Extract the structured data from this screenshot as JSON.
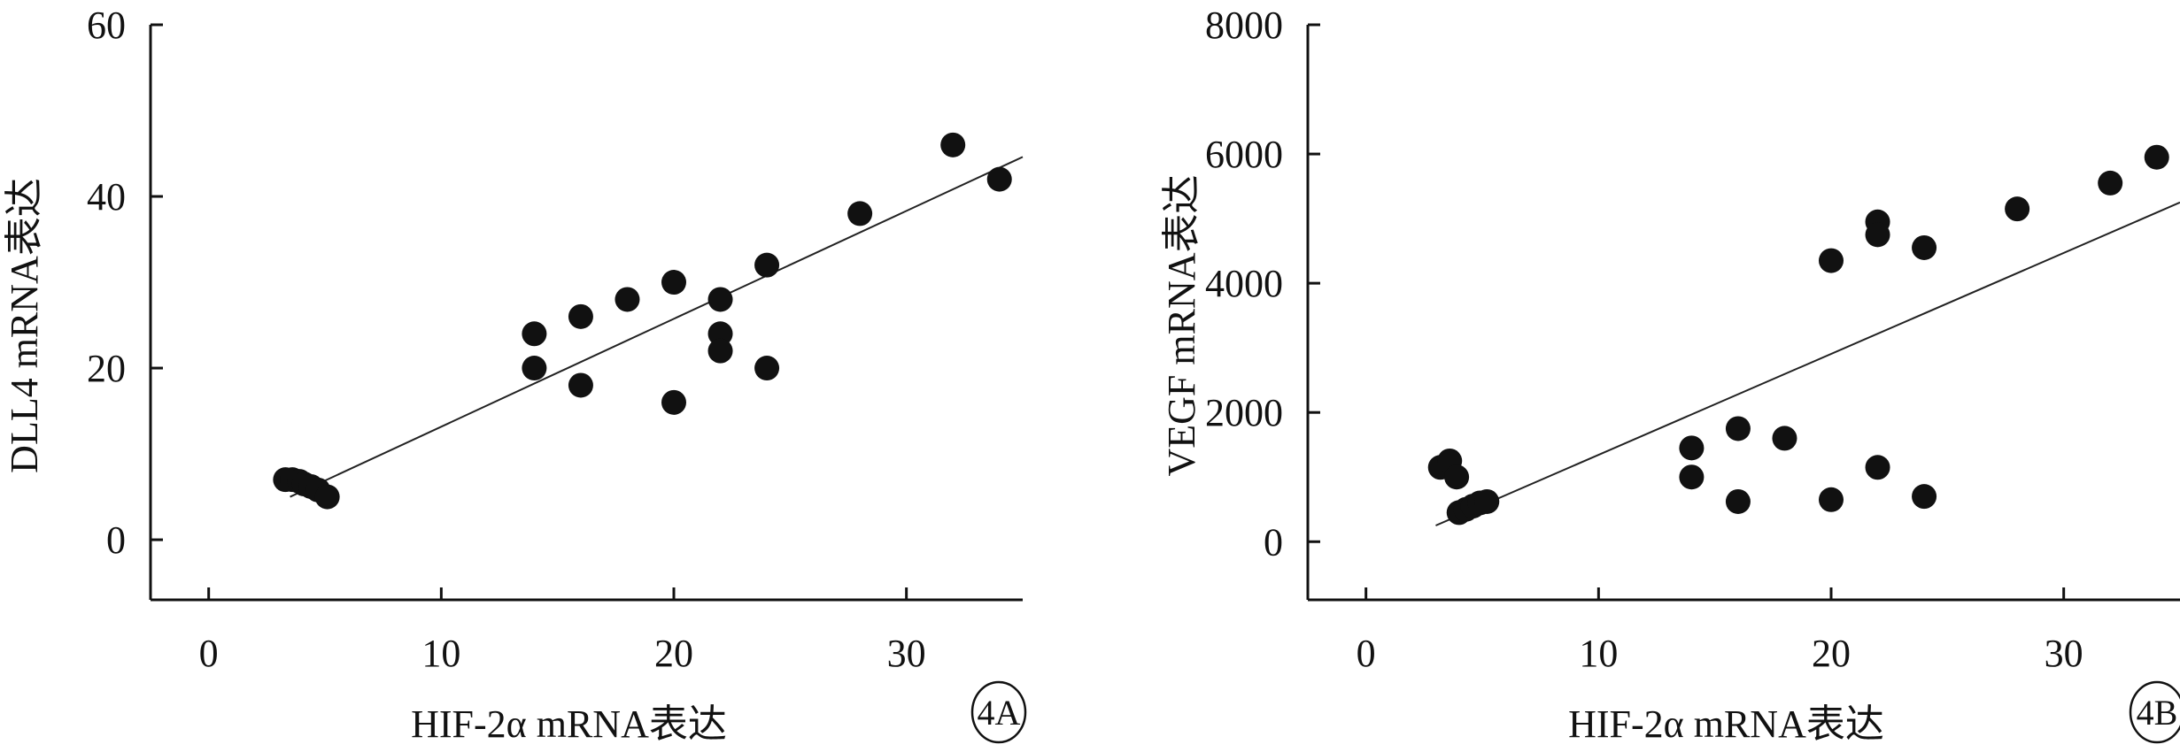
{
  "chart_data": [
    {
      "type": "scatter",
      "panel_label": "4A",
      "xlabel": "HIF-2α mRNA表达",
      "ylabel": "DLL4 mRNA表达",
      "xlim": [
        -2.5,
        35
      ],
      "ylim": [
        -7,
        60
      ],
      "xticks": [
        0,
        10,
        20,
        30
      ],
      "yticks": [
        0,
        20,
        40,
        60
      ],
      "grid": false,
      "points": [
        {
          "x": 3.3,
          "y": 7
        },
        {
          "x": 3.6,
          "y": 7
        },
        {
          "x": 3.9,
          "y": 6.8
        },
        {
          "x": 4.1,
          "y": 6.5
        },
        {
          "x": 4.4,
          "y": 6.2
        },
        {
          "x": 4.7,
          "y": 5.8
        },
        {
          "x": 5.1,
          "y": 5
        },
        {
          "x": 14,
          "y": 24
        },
        {
          "x": 14,
          "y": 20
        },
        {
          "x": 16,
          "y": 26
        },
        {
          "x": 16,
          "y": 18
        },
        {
          "x": 18,
          "y": 28
        },
        {
          "x": 20,
          "y": 30
        },
        {
          "x": 20,
          "y": 16
        },
        {
          "x": 22,
          "y": 28
        },
        {
          "x": 22,
          "y": 24
        },
        {
          "x": 22,
          "y": 22
        },
        {
          "x": 24,
          "y": 32
        },
        {
          "x": 24,
          "y": 20
        },
        {
          "x": 28,
          "y": 38
        },
        {
          "x": 32,
          "y": 46
        },
        {
          "x": 34,
          "y": 42
        }
      ],
      "trendline": {
        "x": [
          3.5,
          35
        ],
        "y": [
          5,
          44.6
        ]
      }
    },
    {
      "type": "scatter",
      "panel_label": "4B",
      "xlabel": "HIF-2α mRNA表达",
      "ylabel": "VEGF mRNA表达",
      "xlim": [
        -2.5,
        35
      ],
      "ylim": [
        -900,
        8000
      ],
      "xticks": [
        0,
        10,
        20,
        30
      ],
      "yticks": [
        0,
        2000,
        4000,
        6000,
        8000
      ],
      "grid": false,
      "points": [
        {
          "x": 3.2,
          "y": 1150
        },
        {
          "x": 3.6,
          "y": 1250
        },
        {
          "x": 3.9,
          "y": 1000
        },
        {
          "x": 4.0,
          "y": 450
        },
        {
          "x": 4.3,
          "y": 500
        },
        {
          "x": 4.6,
          "y": 550
        },
        {
          "x": 4.9,
          "y": 600
        },
        {
          "x": 5.2,
          "y": 620
        },
        {
          "x": 14,
          "y": 1450
        },
        {
          "x": 14,
          "y": 1000
        },
        {
          "x": 16,
          "y": 1750
        },
        {
          "x": 16,
          "y": 620
        },
        {
          "x": 18,
          "y": 1600
        },
        {
          "x": 20,
          "y": 4350
        },
        {
          "x": 20,
          "y": 650
        },
        {
          "x": 22,
          "y": 4950
        },
        {
          "x": 22,
          "y": 4750
        },
        {
          "x": 22,
          "y": 1150
        },
        {
          "x": 24,
          "y": 4550
        },
        {
          "x": 24,
          "y": 700
        },
        {
          "x": 28,
          "y": 5150
        },
        {
          "x": 32,
          "y": 5550
        },
        {
          "x": 34,
          "y": 5950
        }
      ],
      "trendline": {
        "x": [
          3.0,
          35
        ],
        "y": [
          250,
          5250
        ]
      }
    }
  ]
}
